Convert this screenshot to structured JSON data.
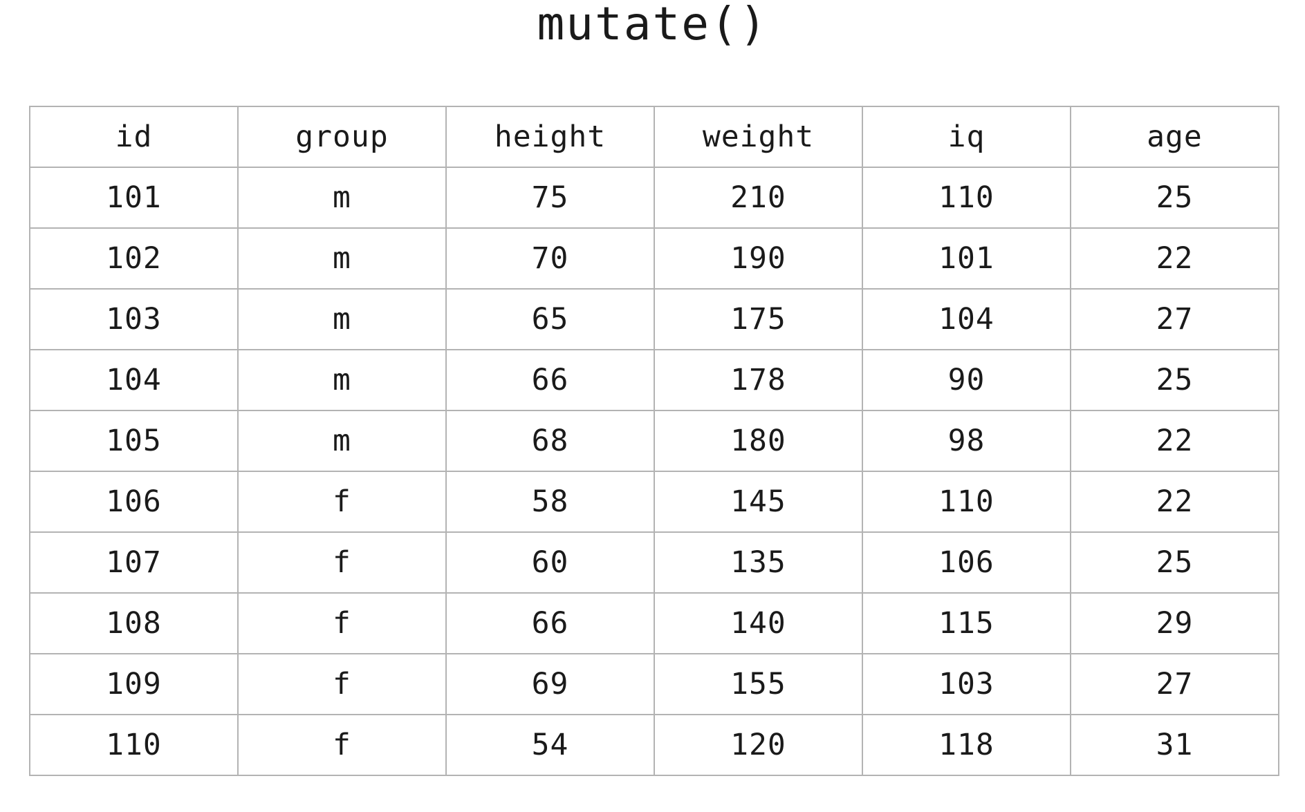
{
  "title": "mutate()",
  "chart_data": {
    "type": "table",
    "title": "mutate()",
    "columns": [
      "id",
      "group",
      "height",
      "weight",
      "iq",
      "age"
    ],
    "rows": [
      [
        "101",
        "m",
        "75",
        "210",
        "110",
        "25"
      ],
      [
        "102",
        "m",
        "70",
        "190",
        "101",
        "22"
      ],
      [
        "103",
        "m",
        "65",
        "175",
        "104",
        "27"
      ],
      [
        "104",
        "m",
        "66",
        "178",
        "90",
        "25"
      ],
      [
        "105",
        "m",
        "68",
        "180",
        "98",
        "22"
      ],
      [
        "106",
        "f",
        "58",
        "145",
        "110",
        "22"
      ],
      [
        "107",
        "f",
        "60",
        "135",
        "106",
        "25"
      ],
      [
        "108",
        "f",
        "66",
        "140",
        "115",
        "29"
      ],
      [
        "109",
        "f",
        "69",
        "155",
        "103",
        "27"
      ],
      [
        "110",
        "f",
        "54",
        "120",
        "118",
        "31"
      ]
    ]
  },
  "colors": {
    "border": "#b3b3b3",
    "text": "#1a1a1a",
    "background": "#ffffff"
  }
}
